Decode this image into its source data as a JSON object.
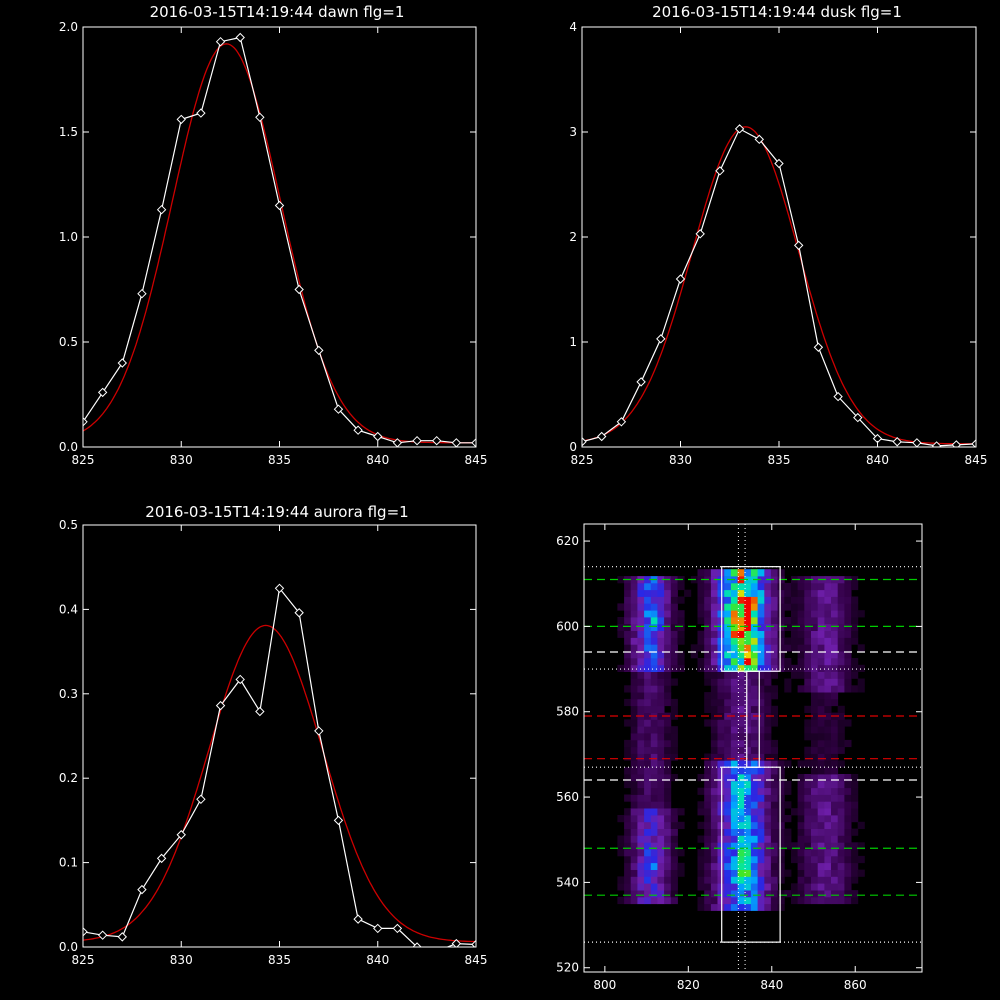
{
  "chart_data": [
    {
      "type": "line",
      "title": "2016-03-15T14:19:44 dawn flg=1",
      "xlim": [
        825,
        845
      ],
      "ylim": [
        0,
        2.0
      ],
      "xticks": [
        "825",
        "830",
        "835",
        "840",
        "845"
      ],
      "yticks": [
        "0.0",
        "0.5",
        "1.0",
        "1.5",
        "2.0"
      ],
      "xtick_values": [
        825,
        830,
        835,
        840,
        845
      ],
      "ytick_values": [
        0,
        0.5,
        1.0,
        1.5,
        2.0
      ],
      "observed": {
        "color": "#ffffff",
        "marker": "diamond",
        "x": [
          825,
          826,
          827,
          828,
          829,
          830,
          831,
          832,
          833,
          834,
          835,
          836,
          837,
          838,
          839,
          840,
          841,
          842,
          843,
          844,
          845
        ],
        "y": [
          0.12,
          0.26,
          0.4,
          0.73,
          1.13,
          1.56,
          1.59,
          1.93,
          1.95,
          1.57,
          1.15,
          0.75,
          0.46,
          0.18,
          0.08,
          0.05,
          0.02,
          0.03,
          0.03,
          0.02,
          0.02
        ]
      },
      "fit": {
        "color": "#cc0000",
        "model": "gaussian",
        "peak": 1.9,
        "center": 832.3,
        "sigma": 2.75,
        "baseline": 0.02
      }
    },
    {
      "type": "line",
      "title": "2016-03-15T14:19:44 dusk flg=1",
      "xlim": [
        825,
        845
      ],
      "ylim": [
        0,
        4
      ],
      "xticks": [
        "825",
        "830",
        "835",
        "840",
        "845"
      ],
      "yticks": [
        "0",
        "1",
        "2",
        "3",
        "4"
      ],
      "xtick_values": [
        825,
        830,
        835,
        840,
        845
      ],
      "ytick_values": [
        0,
        1,
        2,
        3,
        4
      ],
      "observed": {
        "color": "#ffffff",
        "marker": "diamond",
        "x": [
          825,
          826,
          827,
          828,
          829,
          830,
          831,
          832,
          833,
          834,
          835,
          836,
          837,
          838,
          839,
          840,
          841,
          842,
          843,
          844,
          845
        ],
        "y": [
          0.05,
          0.1,
          0.24,
          0.62,
          1.03,
          1.6,
          2.03,
          2.63,
          3.03,
          2.93,
          2.7,
          1.92,
          0.95,
          0.48,
          0.28,
          0.08,
          0.05,
          0.04,
          0.01,
          0.02,
          0.03
        ]
      },
      "fit": {
        "color": "#cc0000",
        "model": "gaussian",
        "peak": 3.02,
        "center": 833.3,
        "sigma": 2.7,
        "baseline": 0.03
      }
    },
    {
      "type": "line",
      "title": "2016-03-15T14:19:44 aurora flg=1",
      "xlim": [
        825,
        845
      ],
      "ylim": [
        0,
        0.5
      ],
      "xticks": [
        "825",
        "830",
        "835",
        "840",
        "845"
      ],
      "yticks": [
        "0.0",
        "0.1",
        "0.2",
        "0.3",
        "0.4",
        "0.5"
      ],
      "xtick_values": [
        825,
        830,
        835,
        840,
        845
      ],
      "ytick_values": [
        0,
        0.1,
        0.2,
        0.3,
        0.4,
        0.5
      ],
      "observed": {
        "color": "#ffffff",
        "marker": "diamond",
        "x": [
          825,
          826,
          827,
          828,
          829,
          830,
          831,
          832,
          833,
          834,
          835,
          836,
          837,
          838,
          839,
          840,
          841,
          842,
          843,
          844,
          845
        ],
        "y": [
          0.018,
          0.014,
          0.012,
          0.068,
          0.105,
          0.133,
          0.175,
          0.286,
          0.317,
          0.279,
          0.425,
          0.396,
          0.256,
          0.15,
          0.033,
          0.022,
          0.022,
          0.0,
          -0.005,
          0.004,
          0.003
        ]
      },
      "fit": {
        "color": "#cc0000",
        "model": "gaussian",
        "peak": 0.375,
        "center": 834.3,
        "sigma": 2.9,
        "baseline": 0.006
      }
    },
    {
      "type": "heatmap",
      "title": "",
      "xlim": [
        795,
        876
      ],
      "ylim": [
        519,
        624
      ],
      "xticks": [
        "800",
        "820",
        "840",
        "860"
      ],
      "yticks": [
        "520",
        "540",
        "560",
        "580",
        "600",
        "620"
      ],
      "xtick_values": [
        800,
        820,
        840,
        860
      ],
      "ytick_values": [
        520,
        540,
        560,
        580,
        600,
        620
      ],
      "colormap": "rainbow",
      "columns": [
        {
          "center": 811,
          "width": 6,
          "segments": [
            [
              590,
              612,
              0.55
            ],
            [
              535,
              558,
              0.45
            ],
            [
              558,
              590,
              0.2
            ]
          ]
        },
        {
          "center": 833,
          "width": 8,
          "segments": [
            [
              589,
              614,
              1.0
            ],
            [
              533,
              568,
              0.7
            ],
            [
              568,
              589,
              0.25
            ]
          ]
        },
        {
          "center": 853,
          "width": 7,
          "segments": [
            [
              585,
              612,
              0.3
            ],
            [
              535,
              565,
              0.28
            ],
            [
              565,
              585,
              0.1
            ]
          ]
        }
      ],
      "hot_spots": [
        [
          834,
          604,
          1.0
        ],
        [
          832,
          599,
          0.85
        ],
        [
          834,
          593,
          0.7
        ],
        [
          832,
          542,
          0.6
        ],
        [
          833,
          548,
          0.55
        ],
        [
          811,
          602,
          0.6
        ],
        [
          810,
          543,
          0.5
        ]
      ],
      "hlines": [
        {
          "y": 611,
          "color": "#00cc00",
          "style": "dashed"
        },
        {
          "y": 600,
          "color": "#00cc00",
          "style": "dashed"
        },
        {
          "y": 594,
          "color": "#ffffff",
          "style": "dashed"
        },
        {
          "y": 579,
          "color": "#dd0000",
          "style": "dashed"
        },
        {
          "y": 569,
          "color": "#dd0000",
          "style": "dashed"
        },
        {
          "y": 564,
          "color": "#ffffff",
          "style": "dashed"
        },
        {
          "y": 548,
          "color": "#00cc00",
          "style": "dashed"
        },
        {
          "y": 537,
          "color": "#00cc00",
          "style": "dashed"
        },
        {
          "y": 614,
          "color": "#ffffff",
          "style": "dotted"
        },
        {
          "y": 590,
          "color": "#ffffff",
          "style": "dotted"
        },
        {
          "y": 567,
          "color": "#ffffff",
          "style": "dotted"
        },
        {
          "y": 526,
          "color": "#ffffff",
          "style": "dotted"
        }
      ],
      "vlines": [
        {
          "x": 832,
          "color": "#ffffff",
          "style": "dotted"
        },
        {
          "x": 833.6,
          "color": "#ffffff",
          "style": "dotted"
        }
      ],
      "boxes": [
        {
          "x0": 828,
          "x1": 842,
          "y0": 589.5,
          "y1": 614
        },
        {
          "x0": 834,
          "x1": 837,
          "y0": 567,
          "y1": 589.5
        },
        {
          "x0": 828,
          "x1": 842,
          "y0": 526,
          "y1": 567
        }
      ]
    }
  ]
}
